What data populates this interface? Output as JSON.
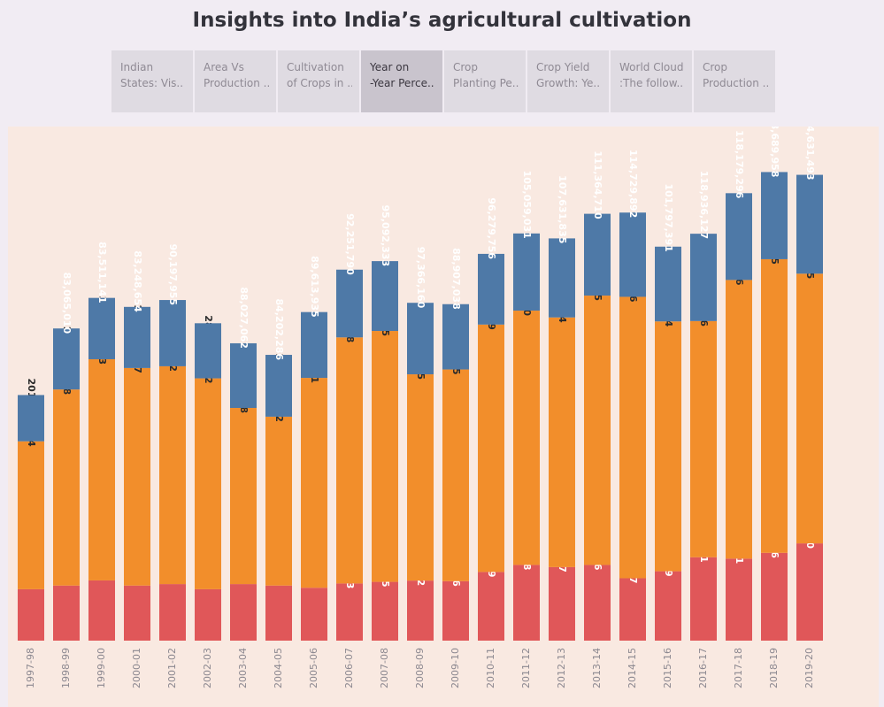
{
  "title": "Insights into India’s agricultural cultivation",
  "tabs": [
    {
      "line1": "Indian",
      "line2": "States: Vis..",
      "active": false
    },
    {
      "line1": "Area Vs",
      "line2": "Production ..",
      "active": false
    },
    {
      "line1": "Cultivation",
      "line2": "of Crops in ..",
      "active": false
    },
    {
      "line1": "Year on",
      "line2": "-Year Perce..",
      "active": true
    },
    {
      "line1": "Crop",
      "line2": "Planting Pe..",
      "active": false
    },
    {
      "line1": "Crop Yield",
      "line2": "Growth: Ye..",
      "active": false
    },
    {
      "line1": "World Cloud",
      "line2": ":The follow..",
      "active": false
    },
    {
      "line1": "Crop",
      "line2": "Production ..",
      "active": false
    }
  ],
  "colors": {
    "bottom": "#e05759",
    "middle": "#f28e2b",
    "top": "#4e79a7"
  },
  "chart_data": {
    "type": "bar",
    "stacked": true,
    "categories": [
      "1997-98",
      "1998-99",
      "1999-00",
      "2000-01",
      "2001-02",
      "2002-03",
      "2003-04",
      "2004-05",
      "2005-06",
      "2006-07",
      "2007-08",
      "2008-09",
      "2009-10",
      "2010-11",
      "2011-12",
      "2012-13",
      "2013-14",
      "2014-15",
      "2015-16",
      "2016-17",
      "2017-18",
      "2018-19",
      "2019-20"
    ],
    "series": [
      {
        "key": "bottom",
        "values": [
          70000000,
          75000000,
          82000000,
          75000000,
          77000000,
          70000000,
          77000000,
          75000000,
          72000000,
          77870833,
          80026575,
          81754792,
          80987636,
          93501829,
          103115998,
          100140237,
          103052326,
          84958167,
          94471389,
          113547581,
          111635301,
          119510276,
          132418100
        ],
        "labels_shown": [
          false,
          false,
          false,
          false,
          false,
          false,
          false,
          false,
          false,
          true,
          true,
          true,
          true,
          true,
          true,
          true,
          true,
          true,
          true,
          true,
          true,
          true,
          true
        ]
      },
      {
        "key": "middle",
        "values": [
          201407054,
          266986658,
          301151203,
          296190247,
          296583372,
          287157392,
          239848248,
          229908812,
          285761091,
          335020038,
          341617845,
          280851335,
          288238265,
          336839159,
          346244750,
          339939394,
          366777005,
          383158336,
          340172114,
          321561936,
          379440186,
          399833515,
          367210235
        ],
        "labels_shown": [
          true,
          true,
          true,
          true,
          true,
          true,
          true,
          true,
          true,
          true,
          true,
          true,
          true,
          true,
          true,
          true,
          true,
          true,
          true,
          true,
          true,
          true,
          true
        ]
      },
      {
        "key": "top",
        "values": [
          63000000,
          83065010,
          83511141,
          83248654,
          90197955,
          75000000,
          88027062,
          84202286,
          89613935,
          92251790,
          95092333,
          97366160,
          88907038,
          96279756,
          105059031,
          107631835,
          111364710,
          114729892,
          101797391,
          118936127,
          118179296,
          118689958,
          134631493
        ],
        "labels_shown": [
          false,
          true,
          true,
          true,
          true,
          false,
          true,
          true,
          true,
          true,
          true,
          true,
          true,
          true,
          true,
          true,
          true,
          true,
          true,
          true,
          true,
          true,
          true
        ]
      }
    ],
    "ylim": [
      0,
      700000000
    ],
    "grid": false,
    "legend": "none"
  }
}
